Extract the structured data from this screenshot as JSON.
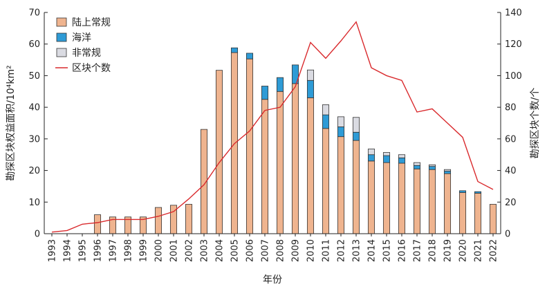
{
  "chart_data": {
    "type": "bar",
    "categories": [
      "1993",
      "1994",
      "1995",
      "1996",
      "1997",
      "1998",
      "1999",
      "2000",
      "2001",
      "2002",
      "2003",
      "2004",
      "2005",
      "2006",
      "2007",
      "2008",
      "2009",
      "2010",
      "2011",
      "2012",
      "2013",
      "2014",
      "2015",
      "2016",
      "2017",
      "2018",
      "2019",
      "2020",
      "2021",
      "2022"
    ],
    "series": [
      {
        "name": "陆上常规",
        "kind": "bar",
        "axis": "left",
        "color": "#efb48f",
        "values": [
          0,
          0,
          0,
          6,
          5.3,
          5.3,
          5.3,
          8.3,
          9,
          9.3,
          33,
          51.7,
          57.3,
          55.3,
          42.5,
          45,
          47.5,
          43,
          33.3,
          30.7,
          29.5,
          23,
          22.5,
          22.3,
          20.5,
          20.3,
          19,
          13,
          12.8,
          9.3
        ]
      },
      {
        "name": "海洋",
        "kind": "bar",
        "axis": "left",
        "color": "#2e9bd6",
        "values": [
          0,
          0,
          0,
          0,
          0,
          0,
          0,
          0,
          0,
          0,
          0,
          0,
          1.5,
          1.8,
          4.2,
          4.4,
          5.9,
          5.5,
          4.3,
          3.1,
          2.6,
          2,
          2.2,
          1.7,
          1.1,
          1,
          0.8,
          0.6,
          0.5,
          0
        ]
      },
      {
        "name": "非常规",
        "kind": "bar",
        "axis": "left",
        "color": "#dadbe2",
        "values": [
          0,
          0,
          0,
          0,
          0,
          0,
          0,
          0,
          0,
          0,
          0,
          0,
          0,
          0,
          0,
          0,
          0,
          3.3,
          3.2,
          3.2,
          4.7,
          1.8,
          1,
          1,
          0.9,
          0.5,
          0.5,
          0,
          0,
          0
        ]
      },
      {
        "name": "区块个数",
        "kind": "line",
        "axis": "right",
        "color": "#d9292c",
        "values": [
          1,
          2,
          6,
          7,
          9,
          9,
          9,
          11,
          14,
          22,
          31,
          45,
          57,
          65,
          78,
          80,
          93,
          121,
          111,
          122,
          134,
          105,
          100,
          97,
          77,
          79,
          70,
          61,
          33,
          28
        ]
      }
    ],
    "ylabel": "勘探区块权益面积/10⁴km²",
    "y2label": "勘探区块个数/个",
    "xlabel": "年份",
    "ylim": [
      0,
      70
    ],
    "yticks": [
      "0",
      "10",
      "20",
      "30",
      "40",
      "50",
      "60",
      "70"
    ],
    "y2lim": [
      0,
      140
    ],
    "y2ticks": [
      "0",
      "20",
      "40",
      "60",
      "80",
      "100",
      "120",
      "140"
    ],
    "legend_position": "top-left",
    "grid": false
  }
}
